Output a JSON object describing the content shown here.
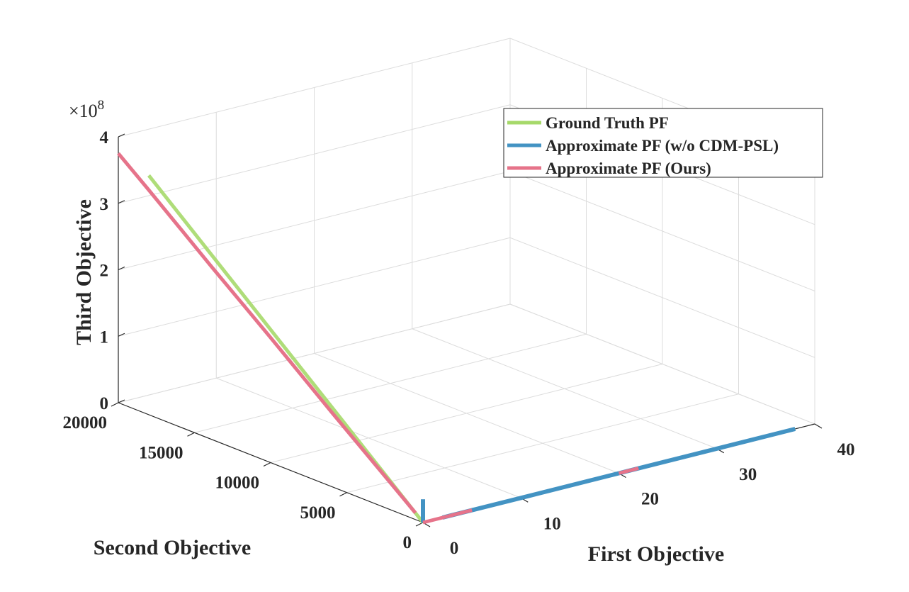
{
  "chart_data": {
    "type": "line",
    "projection": "3d",
    "xlabel": "First Objective",
    "ylabel": "Second Objective",
    "zlabel": "Third Objective",
    "z_exponent_label": "×10",
    "z_exponent_power": "8",
    "xlim": [
      0,
      40
    ],
    "ylim": [
      0,
      20000
    ],
    "zlim": [
      0,
      4
    ],
    "x_ticks": [
      0,
      10,
      20,
      30,
      40
    ],
    "x_tick_labels": [
      "0",
      "10",
      "20",
      "30",
      "40"
    ],
    "y_ticks": [
      0,
      5000,
      10000,
      15000,
      20000
    ],
    "y_tick_labels": [
      "0",
      "5000",
      "10000",
      "15000",
      "20000"
    ],
    "z_ticks": [
      0,
      1,
      2,
      3,
      4
    ],
    "z_tick_labels": [
      "0",
      "1",
      "2",
      "3",
      "4"
    ],
    "grid": true,
    "legend_position": "top-right",
    "series": [
      {
        "name": "Ground Truth PF",
        "color": "#a6d96a",
        "segments": [
          [
            [
              0,
              18000,
              3.6
            ],
            [
              0,
              16000,
              3.2
            ],
            [
              0,
              14000,
              2.8
            ],
            [
              0,
              12000,
              2.4
            ],
            [
              0,
              10000,
              2.0
            ],
            [
              0,
              8000,
              1.6
            ],
            [
              0,
              6000,
              1.2
            ],
            [
              0,
              4000,
              0.8
            ],
            [
              0,
              2000,
              0.4
            ],
            [
              0,
              0,
              0
            ]
          ],
          [
            [
              2,
              0,
              0
            ],
            [
              10,
              0,
              0
            ],
            [
              20,
              0,
              0
            ],
            [
              30,
              0,
              0
            ],
            [
              38,
              0,
              0
            ]
          ]
        ]
      },
      {
        "name": "Approximate PF (w/o CDM-PSL)",
        "color": "#4393c3",
        "segments": [
          [
            [
              0,
              0,
              0
            ],
            [
              0,
              0,
              0.35
            ]
          ],
          [
            [
              2,
              0,
              0
            ],
            [
              10,
              0,
              0
            ],
            [
              20,
              0,
              0
            ],
            [
              30,
              0,
              0
            ],
            [
              38,
              0,
              0
            ]
          ]
        ]
      },
      {
        "name": "Approximate PF (Ours)",
        "color": "#e6738a",
        "segments": [
          [
            [
              0,
              20000,
              3.75
            ],
            [
              0,
              18000,
              3.38
            ],
            [
              0,
              16000,
              3.0
            ],
            [
              0,
              14000,
              2.62
            ],
            [
              0,
              12000,
              2.25
            ],
            [
              0,
              10000,
              1.88
            ],
            [
              0,
              8000,
              1.5
            ],
            [
              0,
              6000,
              1.12
            ],
            [
              0,
              4000,
              0.75
            ],
            [
              0,
              2000,
              0.38
            ],
            [
              0,
              500,
              0.1
            ]
          ],
          [
            [
              0,
              0,
              0
            ],
            [
              5,
              0,
              0
            ]
          ],
          [
            [
              20,
              0,
              0
            ],
            [
              22,
              0,
              0
            ]
          ]
        ]
      }
    ]
  }
}
